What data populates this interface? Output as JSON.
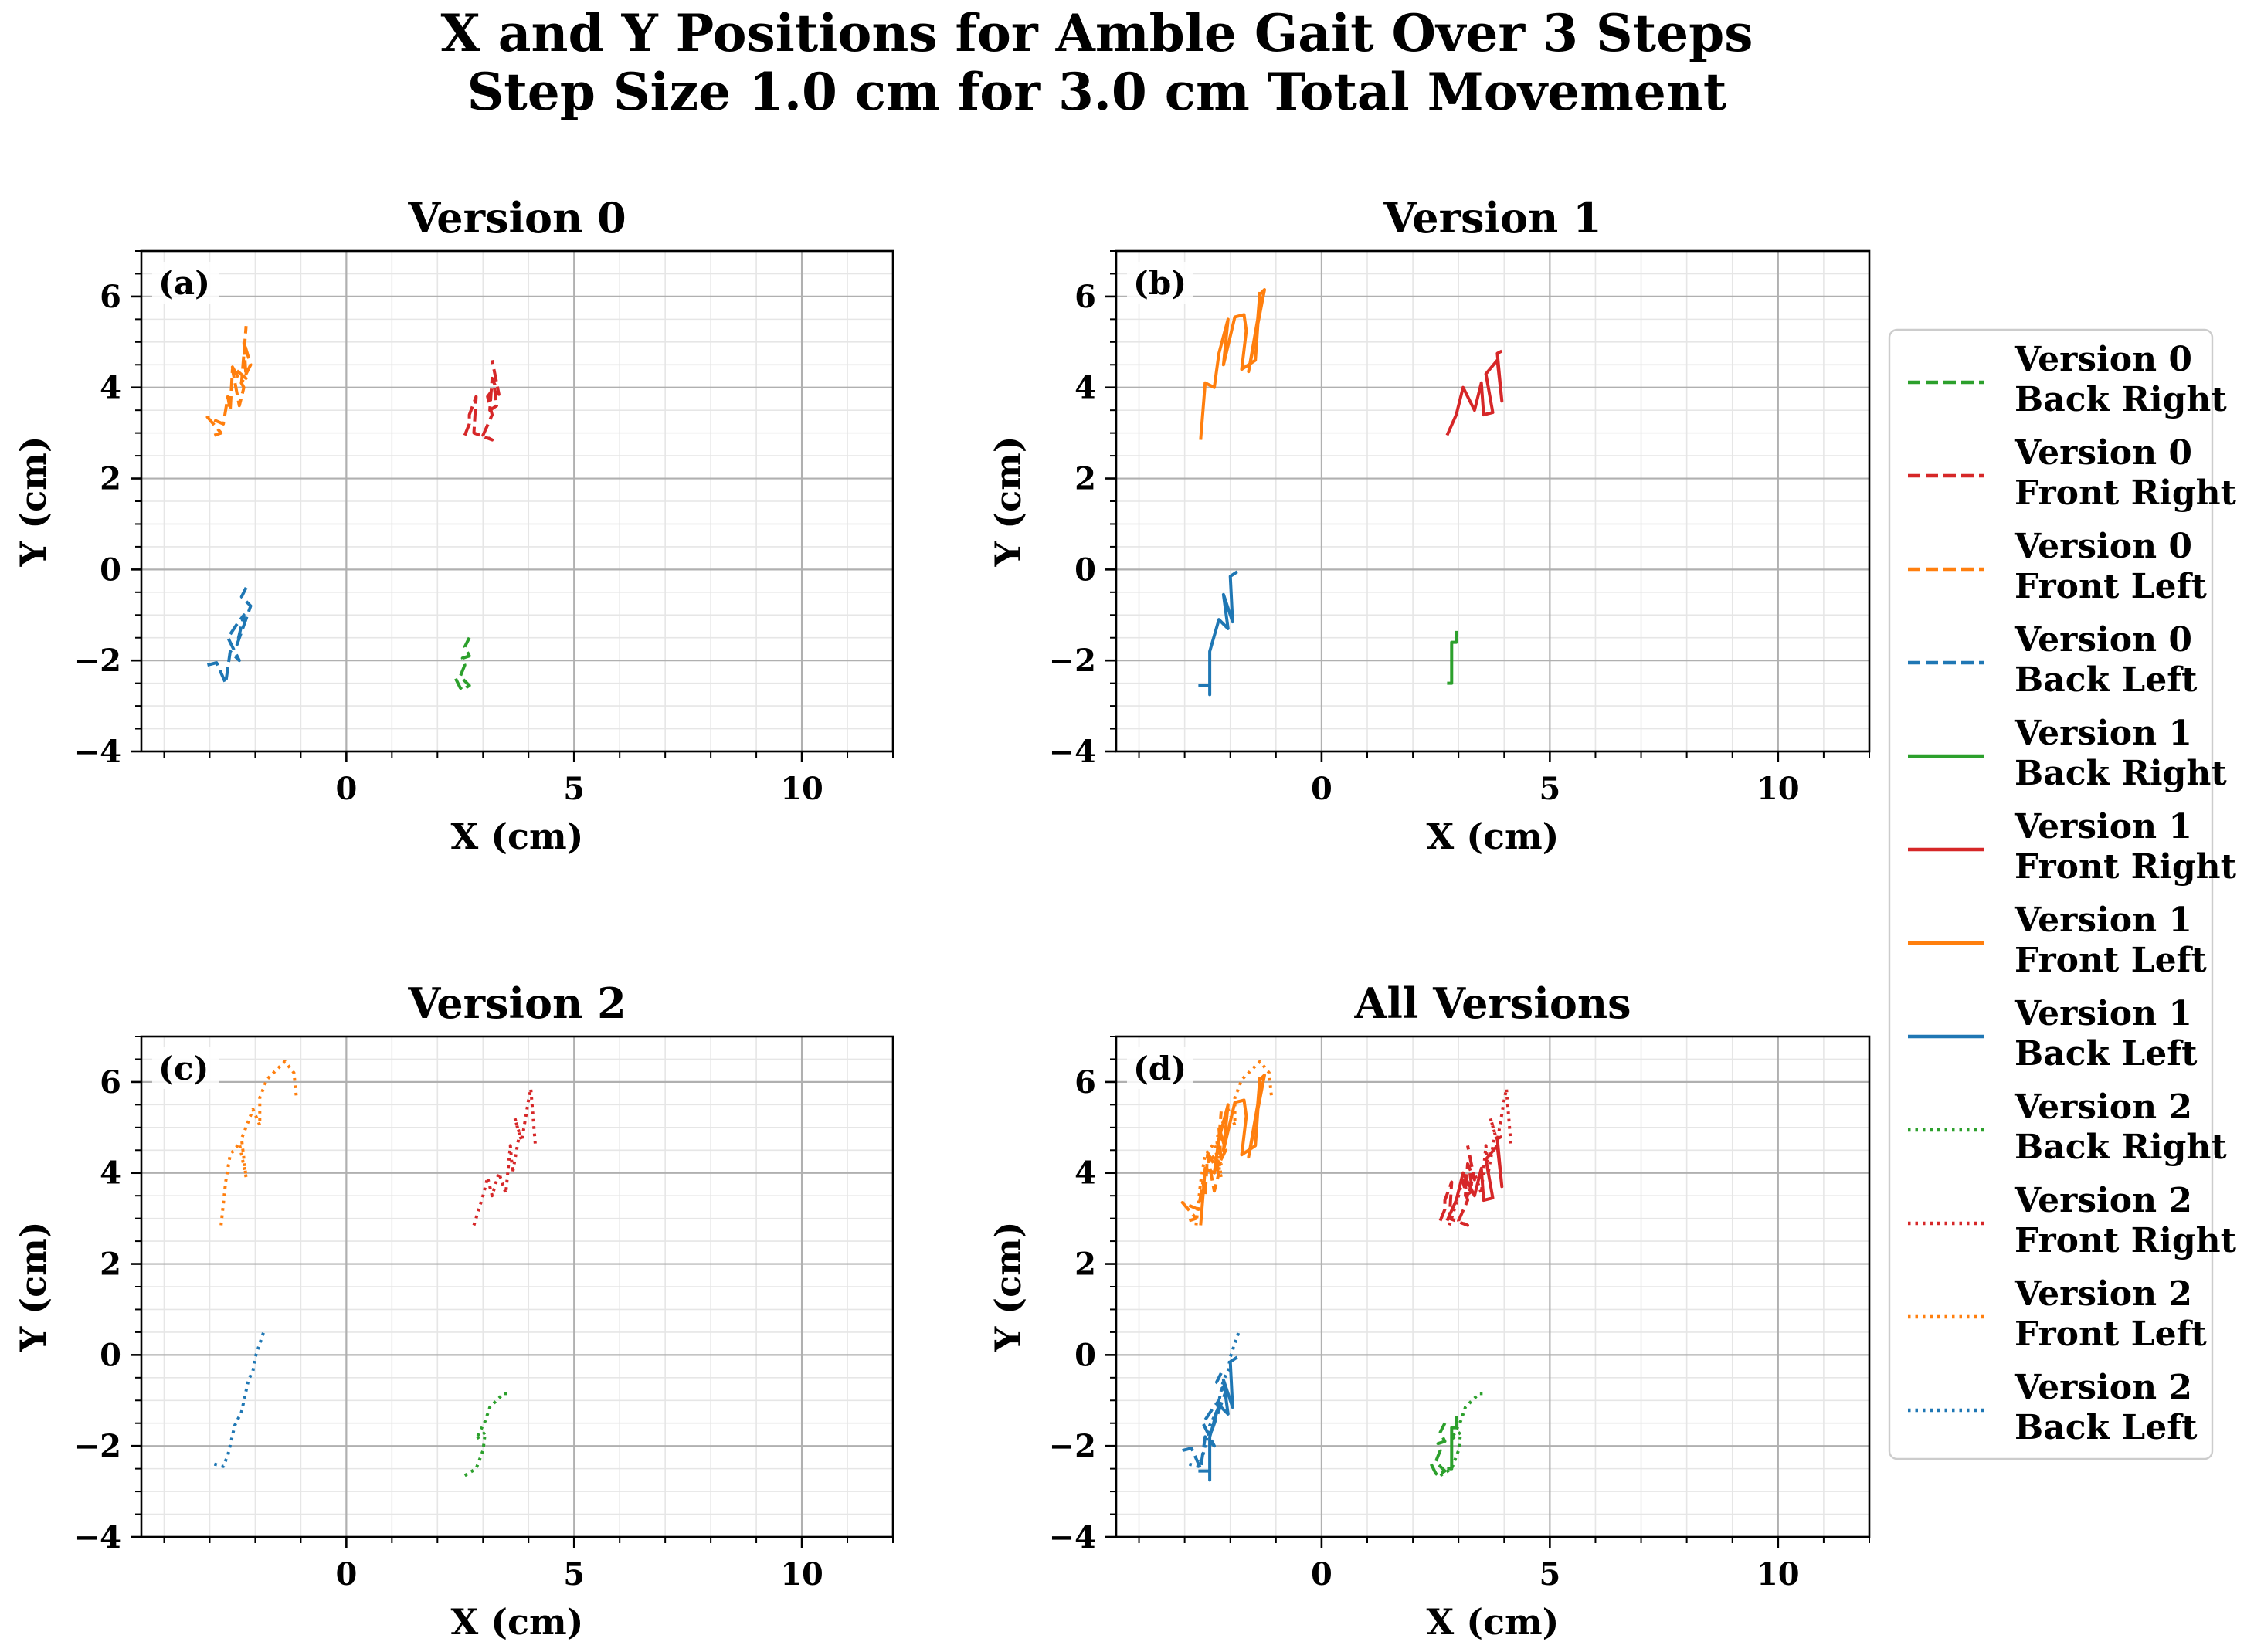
{
  "figure": {
    "title_line1": "X and Y Positions for Amble Gait Over 3 Steps",
    "title_line2": "Step Size 1.0 cm for 3.0 cm Total Movement"
  },
  "colors": {
    "Back Right": "#2ca02c",
    "Front Right": "#d62728",
    "Front Left": "#ff7f0e",
    "Back Left": "#1f77b4"
  },
  "legend": {
    "placement": "right, outside",
    "entries": [
      {
        "version": "Version 0",
        "leg": "Back Right",
        "style": "dashed"
      },
      {
        "version": "Version 0",
        "leg": "Front Right",
        "style": "dashed"
      },
      {
        "version": "Version 0",
        "leg": "Front Left",
        "style": "dashed"
      },
      {
        "version": "Version 0",
        "leg": "Back Left",
        "style": "dashed"
      },
      {
        "version": "Version 1",
        "leg": "Back Right",
        "style": "solid"
      },
      {
        "version": "Version 1",
        "leg": "Front Right",
        "style": "solid"
      },
      {
        "version": "Version 1",
        "leg": "Front Left",
        "style": "solid"
      },
      {
        "version": "Version 1",
        "leg": "Back Left",
        "style": "solid"
      },
      {
        "version": "Version 2",
        "leg": "Back Right",
        "style": "dotted"
      },
      {
        "version": "Version 2",
        "leg": "Front Right",
        "style": "dotted"
      },
      {
        "version": "Version 2",
        "leg": "Front Left",
        "style": "dotted"
      },
      {
        "version": "Version 2",
        "leg": "Back Left",
        "style": "dotted"
      }
    ]
  },
  "chart_data": [
    {
      "type": "line",
      "title": "Version 0",
      "panel_label": "(a)",
      "xlabel": "X (cm)",
      "ylabel": "Y (cm)",
      "xlim": [
        -4.5,
        12
      ],
      "ylim": [
        -4,
        7
      ],
      "xticks": [
        0,
        5,
        10
      ],
      "yticks": [
        -4,
        -2,
        0,
        2,
        4,
        6
      ],
      "grid": "major and minor",
      "series": [
        {
          "name": "Version 0 Back Right",
          "leg": "Back Right",
          "style": "dashed",
          "x": [
            2.4,
            2.5,
            2.55,
            2.7,
            2.5,
            2.6,
            2.55,
            2.7,
            2.6,
            2.7
          ],
          "y": [
            -2.4,
            -2.6,
            -2.65,
            -2.55,
            -2.35,
            -2.1,
            -1.95,
            -1.9,
            -1.7,
            -1.5
          ]
        },
        {
          "name": "Version 0 Front Right",
          "leg": "Front Right",
          "style": "dashed",
          "x": [
            2.6,
            2.7,
            2.7,
            2.85,
            2.8,
            3.2,
            3.0,
            3.2,
            3.1,
            3.25,
            3.3,
            3.15,
            3.2,
            3.35,
            3.2
          ],
          "y": [
            2.95,
            3.2,
            3.4,
            3.8,
            3.0,
            2.85,
            2.95,
            3.4,
            3.8,
            4.0,
            3.6,
            3.5,
            4.2,
            3.85,
            4.6
          ]
        },
        {
          "name": "Version 0 Front Left",
          "leg": "Front Left",
          "style": "dashed",
          "x": [
            -2.9,
            -2.75,
            -3.05,
            -2.7,
            -2.6,
            -2.55,
            -2.5,
            -2.35,
            -2.25,
            -2.5,
            -2.2,
            -2.25,
            -2.1,
            -2.3,
            -2.2
          ],
          "y": [
            2.95,
            3.0,
            3.35,
            3.2,
            3.8,
            3.5,
            4.4,
            3.6,
            4.0,
            4.45,
            4.2,
            5.0,
            4.5,
            4.1,
            5.35
          ]
        },
        {
          "name": "Version 0 Back Left",
          "leg": "Back Left",
          "style": "dashed",
          "x": [
            -3.05,
            -2.85,
            -2.65,
            -2.55,
            -2.35,
            -2.6,
            -2.4,
            -2.25,
            -2.4,
            -2.1,
            -2.3,
            -2.2
          ],
          "y": [
            -2.1,
            -2.05,
            -2.5,
            -1.8,
            -2.0,
            -1.5,
            -1.2,
            -1.0,
            -1.65,
            -0.8,
            -0.6,
            -0.4
          ]
        }
      ]
    },
    {
      "type": "line",
      "title": "Version 1",
      "panel_label": "(b)",
      "xlabel": "X (cm)",
      "ylabel": "Y (cm)",
      "xlim": [
        -4.5,
        12
      ],
      "ylim": [
        -4,
        7
      ],
      "xticks": [
        0,
        5,
        10
      ],
      "yticks": [
        -4,
        -2,
        0,
        2,
        4,
        6
      ],
      "grid": "major and minor",
      "series": [
        {
          "name": "Version 1 Back Right",
          "leg": "Back Right",
          "style": "solid",
          "x": [
            2.75,
            2.85,
            2.85,
            2.95,
            2.95
          ],
          "y": [
            -2.5,
            -2.5,
            -1.6,
            -1.6,
            -1.35
          ]
        },
        {
          "name": "Version 1 Front Right",
          "leg": "Front Right",
          "style": "solid",
          "x": [
            2.75,
            2.95,
            3.1,
            3.35,
            3.5,
            3.55,
            3.75,
            3.6,
            3.85,
            3.95,
            3.85,
            3.95
          ],
          "y": [
            2.95,
            3.4,
            4.0,
            3.5,
            4.1,
            3.4,
            3.45,
            4.3,
            4.6,
            3.7,
            4.75,
            4.8
          ]
        },
        {
          "name": "Version 1 Front Left",
          "leg": "Front Left",
          "style": "solid",
          "x": [
            -2.65,
            -2.55,
            -2.35,
            -2.25,
            -2.05,
            -2.15,
            -1.9,
            -1.7,
            -1.65,
            -1.75,
            -1.45,
            -1.35,
            -1.25,
            -1.6,
            -1.4,
            -1.35
          ],
          "y": [
            2.85,
            4.1,
            4.0,
            4.75,
            5.5,
            4.5,
            5.55,
            5.6,
            5.25,
            4.4,
            4.6,
            6.05,
            6.15,
            4.35,
            5.5,
            6.1
          ]
        },
        {
          "name": "Version 1 Back Left",
          "leg": "Back Left",
          "style": "solid",
          "x": [
            -2.7,
            -2.45,
            -2.45,
            -2.45,
            -2.25,
            -2.05,
            -2.15,
            -1.95,
            -2.0,
            -1.85
          ],
          "y": [
            -2.55,
            -2.55,
            -2.75,
            -1.8,
            -1.1,
            -1.3,
            -0.55,
            -1.15,
            -0.15,
            -0.05
          ]
        }
      ]
    },
    {
      "type": "line",
      "title": "Version 2",
      "panel_label": "(c)",
      "xlabel": "X (cm)",
      "ylabel": "Y (cm)",
      "xlim": [
        -4.5,
        12
      ],
      "ylim": [
        -4,
        7
      ],
      "xticks": [
        0,
        5,
        10
      ],
      "yticks": [
        -4,
        -2,
        0,
        2,
        4,
        6
      ],
      "grid": "major and minor",
      "series": [
        {
          "name": "Version 2 Back Right",
          "leg": "Back Right",
          "style": "dotted",
          "x": [
            2.6,
            2.85,
            3.0,
            3.05,
            2.85,
            3.05,
            3.15,
            3.35,
            3.45,
            3.6
          ],
          "y": [
            -2.65,
            -2.5,
            -2.1,
            -1.7,
            -1.85,
            -1.45,
            -1.15,
            -0.95,
            -0.85,
            -0.85
          ]
        },
        {
          "name": "Version 2 Front Right",
          "leg": "Front Right",
          "style": "dotted",
          "x": [
            2.8,
            3.0,
            3.1,
            3.2,
            3.35,
            3.5,
            3.6,
            3.65,
            3.8,
            3.7,
            3.85,
            4.0,
            4.05,
            4.15
          ],
          "y": [
            2.85,
            3.5,
            3.9,
            3.5,
            4.0,
            3.55,
            4.6,
            4.0,
            4.85,
            5.2,
            4.7,
            5.6,
            5.85,
            4.6
          ]
        },
        {
          "name": "Version 2 Front Left",
          "leg": "Front Left",
          "style": "dotted",
          "x": [
            -2.75,
            -2.65,
            -2.55,
            -2.35,
            -2.2,
            -2.3,
            -2.05,
            -1.9,
            -1.9,
            -1.75,
            -1.55,
            -1.35,
            -1.15,
            -1.1
          ],
          "y": [
            2.85,
            3.8,
            4.4,
            4.65,
            3.9,
            4.75,
            5.4,
            5.05,
            5.65,
            6.05,
            6.25,
            6.45,
            6.2,
            5.7
          ]
        },
        {
          "name": "Version 2 Back Left",
          "leg": "Back Left",
          "style": "dotted",
          "x": [
            -2.9,
            -2.7,
            -2.6,
            -2.45,
            -2.3,
            -2.15,
            -2.05,
            -2.0,
            -1.9,
            -1.8
          ],
          "y": [
            -2.4,
            -2.45,
            -2.2,
            -1.55,
            -1.25,
            -0.55,
            -0.35,
            -0.05,
            0.25,
            0.55
          ]
        }
      ]
    },
    {
      "type": "line",
      "title": "All Versions",
      "panel_label": "(d)",
      "xlabel": "X (cm)",
      "ylabel": "Y (cm)",
      "xlim": [
        -4.5,
        12
      ],
      "ylim": [
        -4,
        7
      ],
      "xticks": [
        0,
        5,
        10
      ],
      "yticks": [
        -4,
        -2,
        0,
        2,
        4,
        6
      ],
      "grid": "major and minor",
      "series_from": "all panels (a)-(c) overlaid"
    }
  ]
}
